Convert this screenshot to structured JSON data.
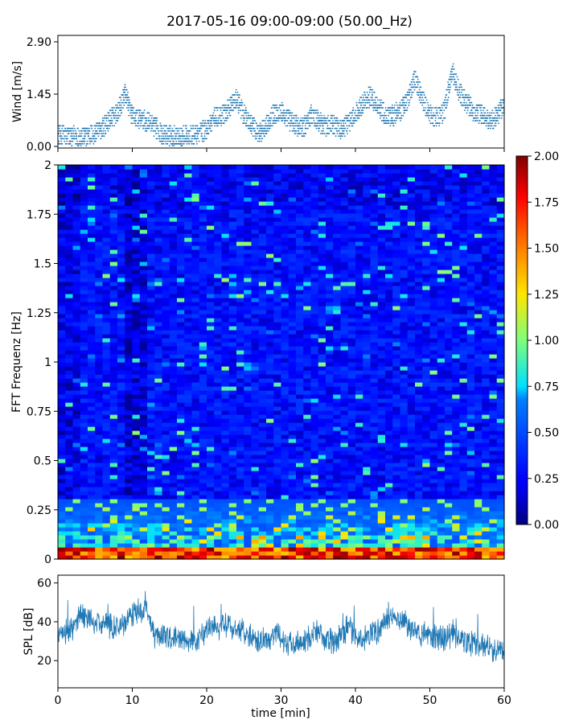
{
  "chart_data": [
    {
      "type": "scatter",
      "title": "2017-05-16 09:00-09:00 (50.00_Hz)",
      "ylabel": "Wind [m/s]",
      "xlim": [
        0,
        60
      ],
      "ylim": [
        0.0,
        2.9
      ],
      "yticks": [
        "0.00",
        "1.45",
        "2.90"
      ],
      "color": "#1f77b4",
      "series": [
        {
          "x": [
            0,
            1,
            2,
            3,
            4,
            5,
            6,
            7,
            8,
            9,
            10,
            11,
            12,
            13,
            14,
            15,
            16,
            17,
            18,
            19,
            20,
            21,
            22,
            23,
            24,
            25,
            26,
            27,
            28,
            29,
            30,
            31,
            32,
            33,
            34,
            35,
            36,
            37,
            38,
            39,
            40,
            41,
            42,
            43,
            44,
            45,
            46,
            47,
            48,
            49,
            50,
            51,
            52,
            53,
            54,
            55,
            56,
            57,
            58,
            59,
            60
          ],
          "values": [
            0.35,
            0.3,
            0.28,
            0.25,
            0.3,
            0.35,
            0.5,
            0.75,
            0.9,
            1.45,
            0.85,
            0.75,
            0.7,
            0.55,
            0.35,
            0.3,
            0.3,
            0.3,
            0.3,
            0.35,
            0.5,
            0.8,
            0.85,
            1.05,
            1.3,
            0.9,
            0.6,
            0.35,
            0.6,
            0.9,
            0.95,
            0.75,
            0.6,
            0.5,
            0.9,
            0.7,
            0.55,
            0.6,
            0.5,
            0.6,
            0.9,
            1.2,
            1.4,
            1.1,
            0.9,
            0.85,
            1.0,
            1.25,
            1.9,
            1.3,
            0.9,
            0.8,
            1.0,
            2.1,
            1.5,
            1.2,
            0.95,
            0.9,
            0.7,
            0.85,
            1.2
          ]
        }
      ]
    },
    {
      "type": "heatmap",
      "ylabel": "FFT Frequenz [Hz]",
      "xlim": [
        0,
        60
      ],
      "ylim": [
        0,
        2
      ],
      "yticks": [
        "0",
        "0.25",
        "0.5",
        "0.75",
        "1",
        "1.25",
        "1.5",
        "1.75",
        "2"
      ],
      "colorbar": {
        "range": [
          0.0,
          2.0
        ],
        "ticks": [
          "0.00",
          "0.25",
          "0.50",
          "0.75",
          "1.00",
          "1.25",
          "1.50",
          "1.75",
          "2.00"
        ],
        "colormap": "jet"
      }
    },
    {
      "type": "line",
      "xlabel": "time [min]",
      "ylabel": "SPL [dB]",
      "xlim": [
        0,
        60
      ],
      "ylim": [
        6,
        64
      ],
      "xticks": [
        "0",
        "10",
        "20",
        "30",
        "40",
        "50",
        "60"
      ],
      "yticks": [
        "20",
        "40",
        "60"
      ],
      "color": "#1f77b4",
      "series": [
        {
          "x": [
            0,
            1,
            2,
            3,
            4,
            5,
            6,
            7,
            8,
            9,
            10,
            11,
            12,
            13,
            14,
            15,
            16,
            17,
            18,
            19,
            20,
            21,
            22,
            23,
            24,
            25,
            26,
            27,
            28,
            29,
            30,
            31,
            32,
            33,
            34,
            35,
            36,
            37,
            38,
            39,
            40,
            41,
            42,
            43,
            44,
            45,
            46,
            47,
            48,
            49,
            50,
            51,
            52,
            53,
            54,
            55,
            56,
            57,
            58,
            59,
            60
          ],
          "values": [
            33,
            35,
            36,
            44,
            42,
            40,
            39,
            38,
            37,
            40,
            44,
            46,
            47,
            33,
            32,
            32,
            31,
            30,
            30,
            31,
            36,
            38,
            37,
            38,
            36,
            35,
            33,
            31,
            30,
            34,
            32,
            29,
            30,
            29,
            33,
            35,
            30,
            30,
            33,
            37,
            33,
            31,
            33,
            35,
            40,
            42,
            41,
            39,
            35,
            33,
            34,
            32,
            31,
            33,
            32,
            30,
            28,
            29,
            26,
            25,
            27
          ]
        }
      ]
    }
  ]
}
